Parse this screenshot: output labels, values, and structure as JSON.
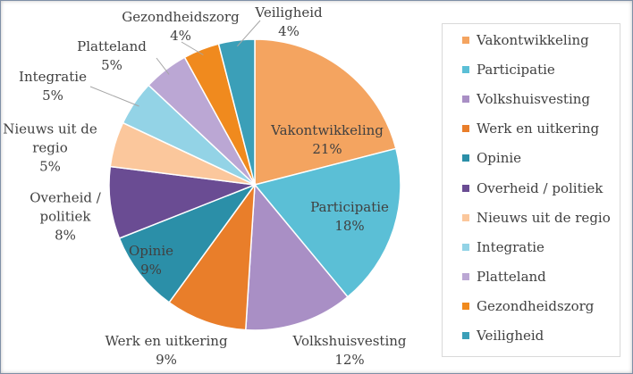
{
  "chart_data": {
    "type": "pie",
    "slices": [
      {
        "name": "Vakontwikkeling",
        "value": 21,
        "label": "21%",
        "color": "#F4A460"
      },
      {
        "name": "Participatie",
        "value": 18,
        "label": "18%",
        "color": "#5BBFD6"
      },
      {
        "name": "Volkshuisvesting",
        "value": 12,
        "label": "12%",
        "color": "#A98FC5"
      },
      {
        "name": "Werk en uitkering",
        "value": 9,
        "label": "9%",
        "color": "#E97E2A"
      },
      {
        "name": "Opinie",
        "value": 9,
        "label": "9%",
        "color": "#2B8FA8"
      },
      {
        "name": "Overheid / politiek",
        "value": 8,
        "label": "8%",
        "color": "#6A4C93"
      },
      {
        "name": "Nieuws uit de regio",
        "value": 5,
        "label": "5%",
        "color": "#FBC79C"
      },
      {
        "name": "Integratie",
        "value": 5,
        "label": "5%",
        "color": "#93D3E6"
      },
      {
        "name": "Platteland",
        "value": 5,
        "label": "5%",
        "color": "#BBA7D4"
      },
      {
        "name": "Gezondheidszorg",
        "value": 4,
        "label": "4%",
        "color": "#F08A1E"
      },
      {
        "name": "Veiligheid",
        "value": 4,
        "label": "4%",
        "color": "#3B9FB8"
      }
    ],
    "legend_position": "right"
  }
}
